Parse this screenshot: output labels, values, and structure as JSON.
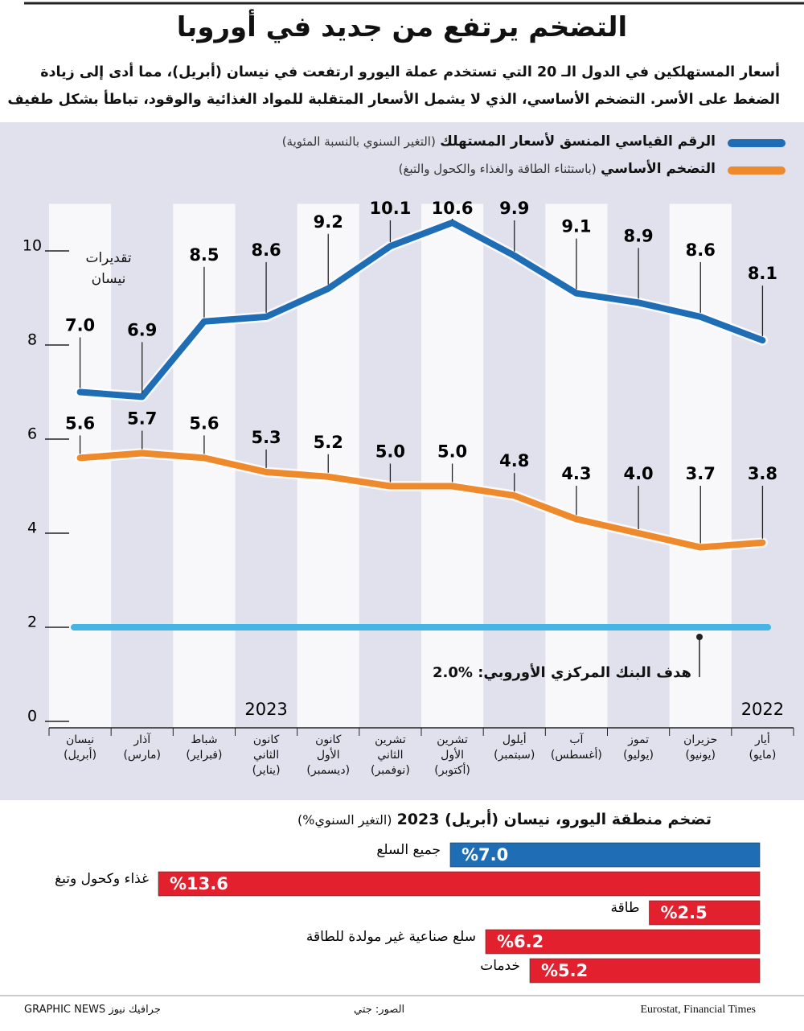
{
  "header": {
    "title": "التضخم يرتفع من جديد في أوروبا",
    "subtitle": [
      "أسعار المستهلكين في الدول الـ 20 التي تستخدم عملة اليورو ارتفعت في نيسان (أبريل)، مما أدى إلى زيادة",
      "الضغط على الأسر. التضخم الأساسي، الذي لا يشمل الأسعار المتقلبة للمواد الغذائية والوقود، تباطأ بشكل طفيف"
    ]
  },
  "chart_data": [
    {
      "type": "line",
      "categories": [
        "نيسان\n(أبريل)",
        "آذار\n(مارس)",
        "شباط\n(فبراير)",
        "كانون\nالثاني\n(يناير)",
        "كانون\nالأول\n(ديسمبر)",
        "تشرين\nالثاني\n(نوفمبر)",
        "تشرين\nالأول\n(أكتوبر)",
        "أيلول\n(سبتمبر)",
        "آب\n(أغسطس)",
        "تموز\n(يوليو)",
        "حزيران\n(يونيو)",
        "أيار\n(مايو)"
      ],
      "series": [
        {
          "name": "الرقم القياسي المنسق لأسعار المستهلك",
          "description": "(التغير السنوي بالنسبة المئوية)",
          "color": "#1f6db5",
          "values": [
            7.0,
            6.9,
            8.5,
            8.6,
            9.2,
            10.1,
            10.6,
            9.9,
            9.1,
            8.9,
            8.6,
            8.1
          ],
          "value_labels": [
            "7.0",
            "6.9",
            "8.5",
            "8.6",
            "9.2",
            "10.1",
            "10.6",
            "9.9",
            "9.1",
            "8.9",
            "8.6",
            "8.1"
          ]
        },
        {
          "name": "التضخم الأساسي",
          "description": "(باستثناء الطاقة والغذاء والكحول والتبغ)",
          "color": "#ef8a2c",
          "values": [
            5.6,
            5.7,
            5.6,
            5.3,
            5.2,
            5.0,
            5.0,
            4.8,
            4.3,
            4.0,
            3.7,
            3.8
          ],
          "value_labels": [
            "5.6",
            "5.7",
            "5.6",
            "5.3",
            "5.2",
            "5.0",
            "5.0",
            "4.8",
            "4.3",
            "4.0",
            "3.7",
            "3.8"
          ]
        }
      ],
      "reference": {
        "value": 2,
        "label": "هدف البنك المركزي الأوروبي: %2.0",
        "color": "#45b5e6"
      },
      "annotation": "تقديرات\nنيسان",
      "years": [
        "2023",
        "2022"
      ],
      "ylim": [
        0,
        11
      ],
      "yticks": [
        0,
        2,
        4,
        6,
        8,
        10
      ]
    },
    {
      "type": "hbar",
      "title": "تضخم منطقة اليورو، نيسان (أبريل) 2023",
      "subtitle": "(التغير السنوي%)",
      "categories": [
        "جميع السلع",
        "غذاء وكحول وتبغ",
        "طاقة",
        "سلع صناعية غير مولدة للطاقة",
        "خدمات"
      ],
      "values": [
        7.0,
        13.6,
        2.5,
        6.2,
        5.2
      ],
      "value_labels": [
        "%7.0",
        "%13.6",
        "%2.5",
        "%6.2",
        "%5.2"
      ],
      "colors": [
        "#1f6db5",
        "#e3202d",
        "#e3202d",
        "#e3202d",
        "#e3202d"
      ]
    }
  ],
  "footer": {
    "credit": "GRAPHIC NEWS جرافيك نيوز",
    "photos": "الصور: جتي",
    "source": "Eurostat, Financial Times"
  }
}
